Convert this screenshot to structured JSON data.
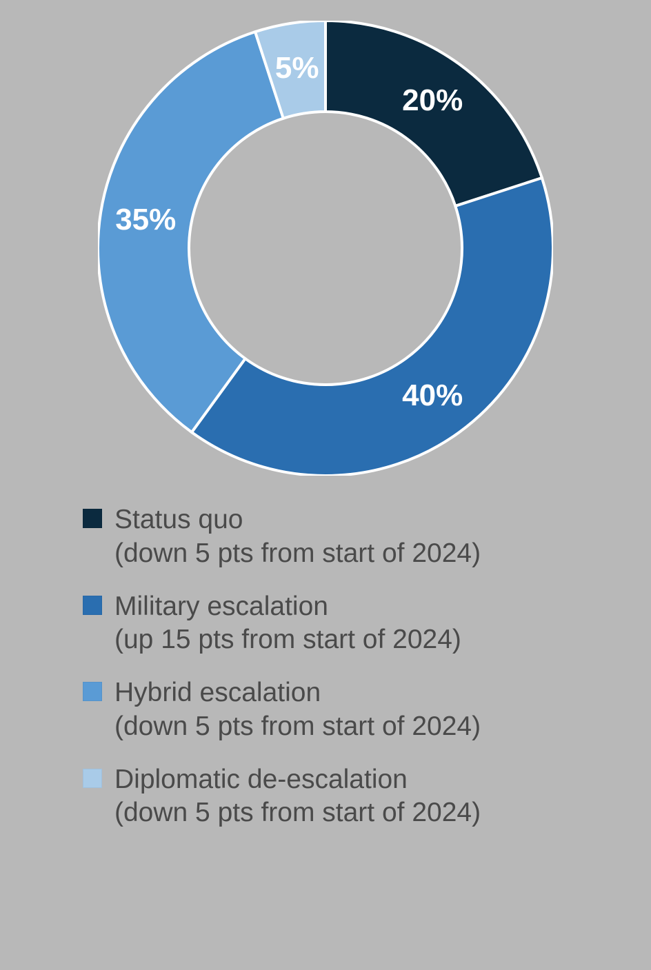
{
  "chart": {
    "type": "donut",
    "background_color": "#b8b8b8",
    "outer_radius_pct": 50,
    "inner_radius_pct": 30,
    "stroke_color": "#ffffff",
    "stroke_width": 4,
    "start_angle_deg": 0,
    "label_fontsize": 44,
    "label_color": "#ffffff",
    "label_radius_pct": 40,
    "slices": [
      {
        "value": 20,
        "label": "20%",
        "color": "#0b2a3f"
      },
      {
        "value": 40,
        "label": "40%",
        "color": "#2a6eb0"
      },
      {
        "value": 35,
        "label": "35%",
        "color": "#5a9bd5"
      },
      {
        "value": 5,
        "label": "5%",
        "color": "#a9cbe8"
      }
    ]
  },
  "legend": {
    "text_color": "#4a4a4a",
    "fontsize": 39,
    "swatch_size": 28,
    "items": [
      {
        "color": "#0b2a3f",
        "title": "Status quo",
        "sub": "(down 5 pts from start of 2024)"
      },
      {
        "color": "#2a6eb0",
        "title": "Military escalation",
        "sub": "(up 15 pts from start of 2024)"
      },
      {
        "color": "#5a9bd5",
        "title": "Hybrid escalation",
        "sub": "(down 5 pts from start of 2024)"
      },
      {
        "color": "#a9cbe8",
        "title": "Diplomatic de-escalation",
        "sub": "(down 5 pts from start of 2024)"
      }
    ]
  }
}
